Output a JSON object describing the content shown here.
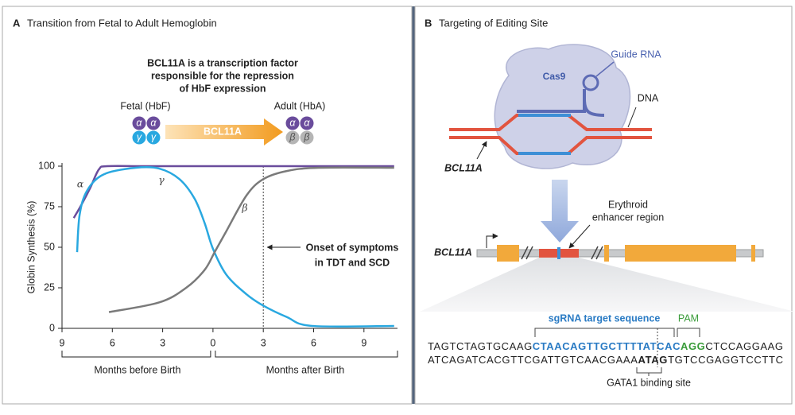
{
  "chart_data": {
    "type": "line",
    "panel_label": "A",
    "title": "Transition from Fetal to Adult Hemoglobin",
    "y_label": "Globin Synthesis (%)",
    "xlim": [
      -9,
      11
    ],
    "ylim": [
      0,
      100
    ],
    "xticks": [
      {
        "value": -9,
        "label": "9"
      },
      {
        "value": -6,
        "label": "6"
      },
      {
        "value": -3,
        "label": "3"
      },
      0,
      3,
      6,
      9
    ],
    "yticks": [
      0,
      25,
      50,
      75,
      100
    ],
    "x_periods": [
      "Months before Birth",
      "Months after Birth"
    ],
    "onset": {
      "x": 3,
      "label": [
        "Onset of symptoms",
        "in TDT and SCD"
      ]
    },
    "series": [
      {
        "name": "α",
        "color": "#6a4c9c",
        "x": [
          -8.3,
          -7.8,
          -7.3,
          -6.8,
          -6.3,
          -4,
          0,
          5,
          10.8
        ],
        "values": [
          68,
          77,
          87,
          98,
          100,
          100,
          100,
          100,
          100
        ]
      },
      {
        "name": "γ",
        "color": "#29a8e0",
        "x": [
          -8.1,
          -7.95,
          -7.5,
          -6.5,
          -4.6,
          -3.2,
          -2,
          -1.1,
          -0.5,
          0,
          0.8,
          2,
          3,
          4.4,
          5.9,
          10.8
        ],
        "values": [
          47,
          70,
          85,
          95,
          99,
          98.5,
          92,
          80,
          65,
          49,
          33,
          21,
          14,
          7,
          1.5,
          1.5
        ]
      },
      {
        "name": "β",
        "color": "#7a7a7a",
        "x": [
          -6.2,
          -3.2,
          -1.6,
          -0.5,
          0.1,
          0.8,
          2,
          3,
          4.4,
          6.3,
          10.8
        ],
        "values": [
          10,
          16,
          25,
          36,
          47,
          60,
          82,
          92,
          97,
          99,
          99
        ]
      }
    ]
  },
  "panel_a_header": {
    "statement": [
      "BCL11A is a transcription factor",
      "responsible for the repression",
      "of HbF expression"
    ],
    "fetal_label": "Fetal (HbF)",
    "adult_label": "Adult (HbA)",
    "arrow_label": "BCL11A",
    "fetal_chains": [
      "α",
      "α",
      "γ",
      "γ"
    ],
    "adult_chains": [
      "α",
      "α",
      "β",
      "β"
    ]
  },
  "panel_b": {
    "panel_label": "B",
    "title": "Targeting of Editing Site",
    "guide_rna": "Guide RNA",
    "cas9": "Cas9",
    "dna": "DNA",
    "locus": "BCL11A",
    "enhancer": [
      "Erythroid",
      "enhancer region"
    ],
    "gene": "BCL11A",
    "sgrna_label": "sgRNA target sequence",
    "pam_label": "PAM",
    "sequence_top": [
      "TAGTCTAGTGCAAG",
      "CTAACAGTTGCTTTTATCAC",
      "AGG",
      "CTCCAGGAAG"
    ],
    "sequence_bottom": [
      "ATCAGATCACGTTCGATTGTCAACGAAA",
      "ATAG",
      "TGTCCGAGGTCCTTC"
    ],
    "gata1_label": "GATA1 binding site"
  }
}
